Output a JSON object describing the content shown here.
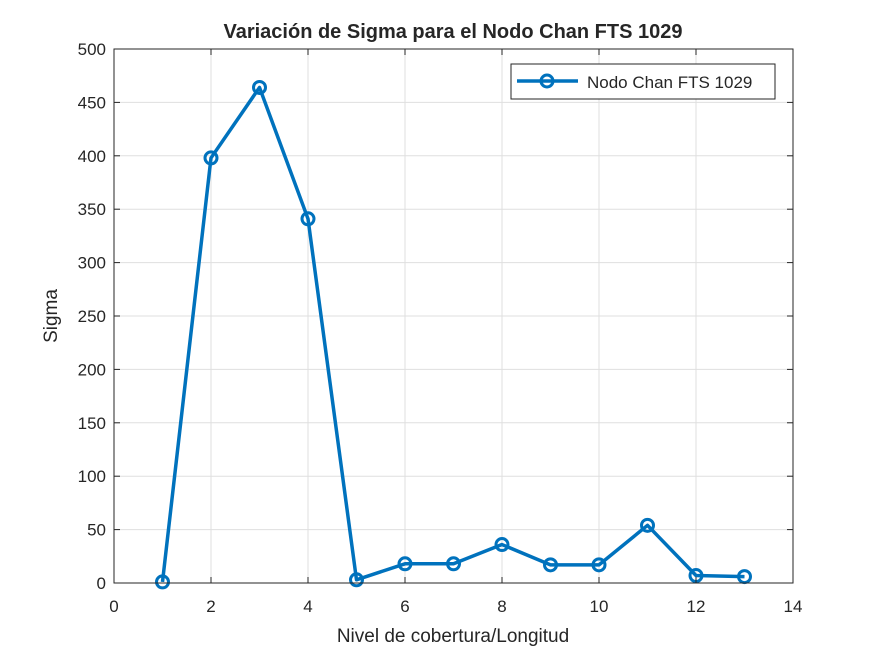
{
  "chart_data": {
    "type": "line",
    "title": "Variación de Sigma para el Nodo Chan FTS 1029",
    "xlabel": "Nivel de cobertura/Longitud",
    "ylabel": "Sigma",
    "xlim": [
      0,
      14
    ],
    "ylim": [
      0,
      500
    ],
    "xticks": [
      0,
      2,
      4,
      6,
      8,
      10,
      12,
      14
    ],
    "yticks": [
      0,
      50,
      100,
      150,
      200,
      250,
      300,
      350,
      400,
      450,
      500
    ],
    "grid": true,
    "legend_location": "top-right",
    "series": [
      {
        "name": "Nodo Chan FTS 1029",
        "color": "#0072BD",
        "marker": "circle",
        "x": [
          1,
          2,
          3,
          4,
          5,
          6,
          7,
          8,
          9,
          10,
          11,
          12,
          13
        ],
        "values": [
          1,
          398,
          464,
          341,
          3,
          18,
          18,
          36,
          17,
          17,
          54,
          7,
          6
        ]
      }
    ]
  }
}
